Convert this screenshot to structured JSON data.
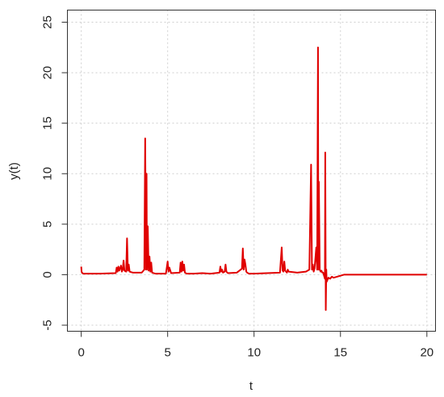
{
  "chart_data": {
    "type": "line",
    "title": "",
    "xlabel": "t",
    "ylabel": "y(t)",
    "xlim": [
      -0.8,
      20.5
    ],
    "ylim": [
      -5.6,
      26.2
    ],
    "x_ticks": [
      0,
      5,
      10,
      15,
      20
    ],
    "y_ticks": [
      -5,
      0,
      5,
      10,
      15,
      20,
      25
    ],
    "grid": true,
    "legend": "none",
    "series": [
      {
        "color": "#e00000",
        "x": [
          0.0,
          0.02,
          0.05,
          0.1,
          1.0,
          2.0,
          2.05,
          2.1,
          2.15,
          2.2,
          2.3,
          2.35,
          2.4,
          2.45,
          2.5,
          2.6,
          2.65,
          2.7,
          2.75,
          2.8,
          3.0,
          3.5,
          3.65,
          3.7,
          3.75,
          3.78,
          3.8,
          3.85,
          3.9,
          3.95,
          4.0,
          4.05,
          4.1,
          4.3,
          4.9,
          5.0,
          5.05,
          5.1,
          5.2,
          5.7,
          5.75,
          5.8,
          5.85,
          5.9,
          5.95,
          6.0,
          6.05,
          6.1,
          6.5,
          7.0,
          7.5,
          8.0,
          8.05,
          8.1,
          8.15,
          8.2,
          8.3,
          8.35,
          8.4,
          8.45,
          8.5,
          9.0,
          9.3,
          9.35,
          9.4,
          9.45,
          9.5,
          9.55,
          9.6,
          9.65,
          9.7,
          10.0,
          11.5,
          11.6,
          11.65,
          11.7,
          11.75,
          11.8,
          11.85,
          11.9,
          11.95,
          12.0,
          12.5,
          13.0,
          13.2,
          13.3,
          13.35,
          13.4,
          13.45,
          13.5,
          13.6,
          13.65,
          13.7,
          13.72,
          13.75,
          13.8,
          13.85,
          13.9,
          13.95,
          14.0,
          14.1,
          14.12,
          14.15,
          14.18,
          14.2,
          14.25,
          14.3,
          14.4,
          14.5,
          14.6,
          14.8,
          15.0,
          15.2,
          16.0,
          17.0,
          18.0,
          19.0,
          20.0
        ],
        "y": [
          0.8,
          0.3,
          0.2,
          0.1,
          0.1,
          0.15,
          0.7,
          0.3,
          0.8,
          0.4,
          0.9,
          0.3,
          0.5,
          1.4,
          0.4,
          0.3,
          3.6,
          0.4,
          1.0,
          0.3,
          0.2,
          0.2,
          0.5,
          13.5,
          0.5,
          10.0,
          0.5,
          4.8,
          0.4,
          1.8,
          0.3,
          1.2,
          0.2,
          0.1,
          0.1,
          1.3,
          0.3,
          0.7,
          0.15,
          0.2,
          1.2,
          0.3,
          1.3,
          0.4,
          1.0,
          0.2,
          0.15,
          0.1,
          0.1,
          0.15,
          0.1,
          0.2,
          0.8,
          0.3,
          0.5,
          0.2,
          0.3,
          1.0,
          0.3,
          0.2,
          0.15,
          0.2,
          0.6,
          2.6,
          0.5,
          1.5,
          1.0,
          0.3,
          0.2,
          0.15,
          0.1,
          0.1,
          0.2,
          2.7,
          0.4,
          0.3,
          1.3,
          0.4,
          0.3,
          0.2,
          0.5,
          0.3,
          0.2,
          0.3,
          0.5,
          10.9,
          0.5,
          1.0,
          0.3,
          0.6,
          2.7,
          0.5,
          22.5,
          0.5,
          9.2,
          0.5,
          0.3,
          0.4,
          0.2,
          0.2,
          -0.4,
          12.1,
          -3.5,
          0.5,
          -0.7,
          -0.5,
          -0.3,
          -0.4,
          -0.2,
          -0.3,
          -0.2,
          -0.1,
          0.0,
          0.0,
          0.0,
          0.0,
          0.0,
          0.0
        ]
      }
    ]
  }
}
